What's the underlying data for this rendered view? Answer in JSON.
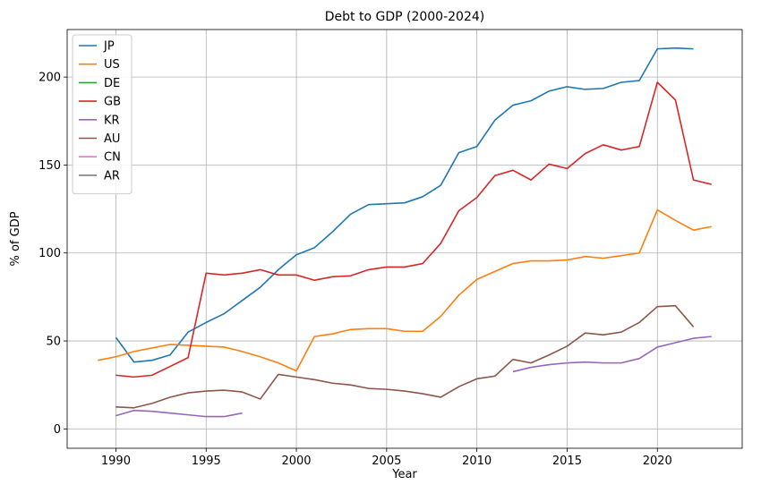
{
  "chart_data": {
    "type": "line",
    "title": "Debt to GDP (2000-2024)",
    "xlabel": "Year",
    "ylabel": "% of GDP",
    "xlim": [
      1987.3,
      1984.7
    ],
    "ylim": [
      -11,
      227
    ],
    "x_ticks": [
      1990,
      1995,
      2000,
      2005,
      2010,
      2015,
      2020
    ],
    "y_ticks": [
      0,
      50,
      100,
      150,
      200
    ],
    "grid": true,
    "legend_position": "top-left",
    "series": [
      {
        "name": "JP",
        "color": "#1f77b4",
        "points": [
          [
            1990,
            52
          ],
          [
            1991,
            38
          ],
          [
            1992,
            39
          ],
          [
            1993,
            42
          ],
          [
            1994,
            55
          ],
          [
            1995,
            60.5
          ],
          [
            1996,
            65.5
          ],
          [
            1997,
            73
          ],
          [
            1998,
            80.5
          ],
          [
            1999,
            90.5
          ],
          [
            2000,
            99
          ],
          [
            2001,
            103
          ],
          [
            2002,
            112
          ],
          [
            2003,
            122
          ],
          [
            2004,
            127.5
          ],
          [
            2005,
            128
          ],
          [
            2006,
            128.5
          ],
          [
            2007,
            132
          ],
          [
            2008,
            138.5
          ],
          [
            2009,
            157
          ],
          [
            2010,
            160.5
          ],
          [
            2011,
            175.5
          ],
          [
            2012,
            184
          ],
          [
            2013,
            186.5
          ],
          [
            2014,
            192
          ],
          [
            2015,
            194.5
          ],
          [
            2016,
            193
          ],
          [
            2017,
            193.5
          ],
          [
            2018,
            197
          ],
          [
            2019,
            198
          ],
          [
            2020,
            216
          ],
          [
            2021,
            216.5
          ],
          [
            2022,
            216
          ]
        ]
      },
      {
        "name": "US",
        "color": "#ff7f0e",
        "points": [
          [
            1989,
            39
          ],
          [
            1990,
            41
          ],
          [
            1991,
            44
          ],
          [
            1992,
            46
          ],
          [
            1993,
            48
          ],
          [
            1994,
            47.5
          ],
          [
            1995,
            47
          ],
          [
            1996,
            46.5
          ],
          [
            1997,
            44
          ],
          [
            1998,
            41
          ],
          [
            1999,
            37.5
          ],
          [
            2000,
            33
          ],
          [
            2001,
            52.5
          ],
          [
            2002,
            54
          ],
          [
            2003,
            56.5
          ],
          [
            2004,
            57
          ],
          [
            2005,
            57
          ],
          [
            2006,
            55.5
          ],
          [
            2007,
            55.5
          ],
          [
            2008,
            64
          ],
          [
            2009,
            76
          ],
          [
            2010,
            85
          ],
          [
            2011,
            89.5
          ],
          [
            2012,
            94
          ],
          [
            2013,
            95.5
          ],
          [
            2014,
            95.5
          ],
          [
            2015,
            96
          ],
          [
            2016,
            98
          ],
          [
            2017,
            97
          ],
          [
            2018,
            98.5
          ],
          [
            2019,
            100
          ],
          [
            2020,
            124.5
          ],
          [
            2021,
            118.5
          ],
          [
            2022,
            113
          ],
          [
            2023,
            115
          ]
        ]
      },
      {
        "name": "DE",
        "color": "#2ca02c",
        "points": []
      },
      {
        "name": "GB",
        "color": "#d62728",
        "points": [
          [
            1990,
            30.5
          ],
          [
            1991,
            29.5
          ],
          [
            1992,
            30.5
          ],
          [
            1993,
            35.5
          ],
          [
            1994,
            40.5
          ],
          [
            1995,
            88.5
          ],
          [
            1996,
            87.5
          ],
          [
            1997,
            88.5
          ],
          [
            1998,
            90.5
          ],
          [
            1999,
            87.5
          ],
          [
            2000,
            87.5
          ],
          [
            2001,
            84.5
          ],
          [
            2002,
            86.5
          ],
          [
            2003,
            87
          ],
          [
            2004,
            90.5
          ],
          [
            2005,
            92
          ],
          [
            2006,
            92
          ],
          [
            2007,
            94
          ],
          [
            2008,
            105.5
          ],
          [
            2009,
            124
          ],
          [
            2010,
            131.5
          ],
          [
            2011,
            144
          ],
          [
            2012,
            147
          ],
          [
            2013,
            141.5
          ],
          [
            2014,
            150.5
          ],
          [
            2015,
            148
          ],
          [
            2016,
            156.5
          ],
          [
            2017,
            161.5
          ],
          [
            2018,
            158.5
          ],
          [
            2019,
            160.5
          ],
          [
            2020,
            197
          ],
          [
            2021,
            187
          ],
          [
            2022,
            141.5
          ],
          [
            2023,
            139
          ]
        ]
      },
      {
        "name": "KR",
        "color": "#9467bd",
        "segments": [
          [
            [
              1990,
              7.5
            ],
            [
              1991,
              10.5
            ],
            [
              1992,
              10
            ],
            [
              1993,
              9
            ],
            [
              1994,
              8
            ],
            [
              1995,
              7
            ],
            [
              1996,
              7
            ],
            [
              1997,
              9
            ]
          ],
          [
            [
              2012,
              32.5
            ],
            [
              2013,
              35
            ],
            [
              2014,
              36.5
            ],
            [
              2015,
              37.5
            ],
            [
              2016,
              38
            ],
            [
              2017,
              37.5
            ],
            [
              2018,
              37.5
            ],
            [
              2019,
              40
            ],
            [
              2020,
              46.5
            ],
            [
              2021,
              49
            ],
            [
              2022,
              51.5
            ],
            [
              2023,
              52.5
            ]
          ]
        ]
      },
      {
        "name": "AU",
        "color": "#8c564b",
        "points": [
          [
            1990,
            12.5
          ],
          [
            1991,
            12
          ],
          [
            1992,
            14.5
          ],
          [
            1993,
            18
          ],
          [
            1994,
            20.5
          ],
          [
            1995,
            21.5
          ],
          [
            1996,
            22
          ],
          [
            1997,
            21
          ],
          [
            1998,
            17
          ],
          [
            1999,
            31
          ],
          [
            2000,
            29.5
          ],
          [
            2001,
            28
          ],
          [
            2002,
            26
          ],
          [
            2003,
            25
          ],
          [
            2004,
            23
          ],
          [
            2005,
            22.5
          ],
          [
            2006,
            21.5
          ],
          [
            2007,
            20
          ],
          [
            2008,
            18
          ],
          [
            2009,
            24
          ],
          [
            2010,
            28.5
          ],
          [
            2011,
            30
          ],
          [
            2012,
            39.5
          ],
          [
            2013,
            37.5
          ],
          [
            2014,
            42
          ],
          [
            2015,
            47
          ],
          [
            2016,
            54.5
          ],
          [
            2017,
            53.5
          ],
          [
            2018,
            55
          ],
          [
            2019,
            60.5
          ],
          [
            2020,
            69.5
          ],
          [
            2021,
            70
          ],
          [
            2022,
            58
          ]
        ]
      },
      {
        "name": "CN",
        "color": "#e377c2",
        "points": []
      },
      {
        "name": "AR",
        "color": "#7f7f7f",
        "points": []
      }
    ]
  }
}
